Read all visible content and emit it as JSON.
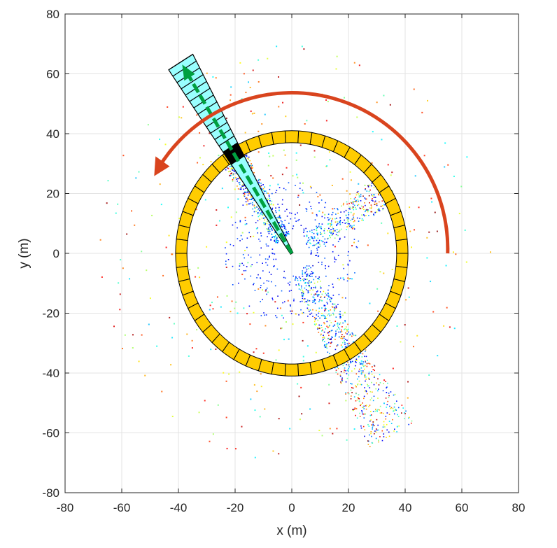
{
  "chart_data": {
    "type": "scatter",
    "title": "",
    "xlabel": "x (m)",
    "ylabel": "y (m)",
    "xlim": [
      -80,
      80
    ],
    "ylim": [
      -80,
      80
    ],
    "xticks": [
      -80,
      -60,
      -40,
      -20,
      0,
      20,
      40,
      60,
      80
    ],
    "yticks": [
      -80,
      -60,
      -40,
      -20,
      0,
      20,
      40,
      60,
      80
    ],
    "xtick_labels": [
      "-80",
      "-60",
      "-40",
      "-20",
      "0",
      "20",
      "40",
      "60",
      "80"
    ],
    "ytick_labels": [
      "-80",
      "-60",
      "-40",
      "-20",
      "0",
      "20",
      "40",
      "60",
      "80"
    ],
    "grid": true,
    "annotations": {
      "ring": {
        "center": [
          0,
          0
        ],
        "inner_radius": 37,
        "outer_radius": 41,
        "segments": 54,
        "color": "#ffcc00"
      },
      "beam": {
        "origin": [
          0,
          0
        ],
        "angle_deg": 121.5,
        "start_radius": 0,
        "end_radius": 75,
        "bins": 13,
        "start_width": 1,
        "end_width": 10,
        "color": "#99ffff",
        "highlight_radius": 39,
        "highlight_color": "#000000"
      },
      "direction_arrow": {
        "angle_deg": 121.5,
        "length": 74,
        "color": "#00a040"
      },
      "rotation_arc": {
        "radius": 55,
        "start_deg": 0,
        "end_deg": 152,
        "color": "#d9441e"
      }
    },
    "point_cloud": {
      "colormap": "jet",
      "lanes": [
        {
          "angle_deg": 123,
          "width": 8,
          "r0": 6,
          "r1": 38,
          "count": 500
        },
        {
          "angle_deg": 33,
          "width": 9,
          "r0": 6,
          "r1": 40,
          "count": 300
        },
        {
          "angle_deg": 300,
          "width": 10,
          "r0": 6,
          "r1": 70,
          "count": 700
        }
      ]
    }
  }
}
